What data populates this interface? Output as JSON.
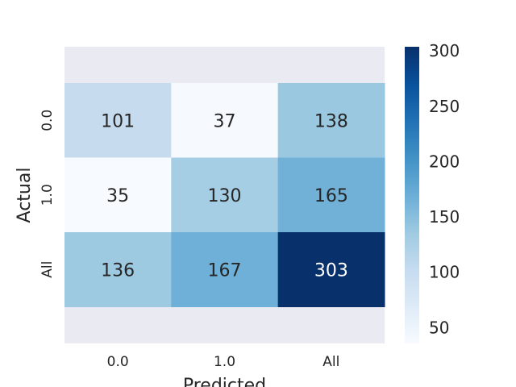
{
  "chart_data": {
    "type": "heatmap",
    "xlabel": "Predicted",
    "ylabel": "Actual",
    "x_categories": [
      "0.0",
      "1.0",
      "All"
    ],
    "y_categories": [
      "0.0",
      "1.0",
      "All"
    ],
    "values": [
      [
        101,
        37,
        138
      ],
      [
        35,
        130,
        165
      ],
      [
        136,
        167,
        303
      ]
    ],
    "colorscale": "Blues",
    "colorbar_range": [
      35,
      303
    ],
    "colorbar_ticks": [
      "50",
      "100",
      "150",
      "200",
      "250",
      "300"
    ],
    "plot_background": "#eaeaf2"
  }
}
